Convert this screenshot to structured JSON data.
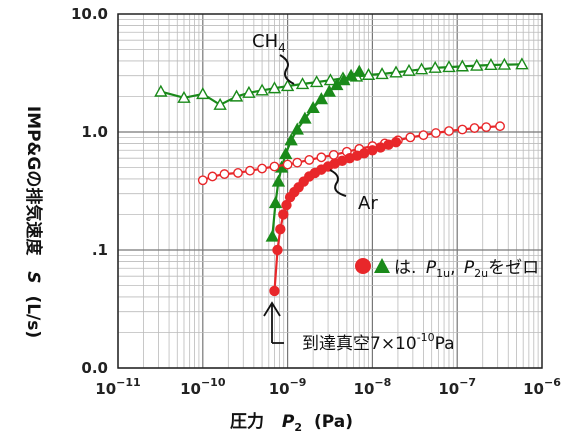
{
  "chart_data": {
    "type": "line",
    "x_scale": "log",
    "y_scale": "log",
    "xlim": [
      1e-11,
      1e-06
    ],
    "ylim": [
      0.01,
      10
    ],
    "grid": true,
    "xlabel_prefix": "圧力",
    "xlabel_var": "P",
    "xlabel_sub": "2",
    "xlabel_unit": "(Pa)",
    "ylabel": "IMP&Gの排気速度",
    "ylabel_var": "S",
    "ylabel_unit": "(L/s)",
    "y_ticks": [
      {
        "value": 10,
        "label": "10.0"
      },
      {
        "value": 1,
        "label": "1.0"
      },
      {
        "value": 0.1,
        "label": ".1"
      },
      {
        "value": 0.01,
        "label": "0.0"
      }
    ],
    "x_ticks": [
      {
        "value": 1e-11,
        "base": "10",
        "exp": "−11"
      },
      {
        "value": 1e-10,
        "base": "10",
        "exp": "−10"
      },
      {
        "value": 1e-09,
        "base": "10",
        "exp": "−9"
      },
      {
        "value": 1e-08,
        "base": "10",
        "exp": "−8"
      },
      {
        "value": 1e-07,
        "base": "10",
        "exp": "−7"
      },
      {
        "value": 1e-06,
        "base": "10",
        "exp": "−6"
      }
    ],
    "series": [
      {
        "name": "CH4 open",
        "color": "#1a8a1a",
        "marker": "triangle-open",
        "x": [
          3.2e-11,
          6e-11,
          1e-10,
          1.6e-10,
          2.5e-10,
          3.5e-10,
          5e-10,
          7e-10,
          1e-09,
          1.5e-09,
          2.2e-09,
          3.2e-09,
          4.5e-09,
          6.5e-09,
          9e-09,
          1.3e-08,
          1.9e-08,
          2.7e-08,
          3.8e-08,
          5.5e-08,
          8e-08,
          1.15e-07,
          1.7e-07,
          2.5e-07,
          3.6e-07,
          5.8e-07
        ],
        "y": [
          2.2,
          1.95,
          2.1,
          1.7,
          2.0,
          2.15,
          2.25,
          2.35,
          2.45,
          2.55,
          2.65,
          2.75,
          2.85,
          2.95,
          3.05,
          3.1,
          3.2,
          3.3,
          3.4,
          3.5,
          3.55,
          3.6,
          3.65,
          3.7,
          3.72,
          3.75
        ]
      },
      {
        "name": "CH4 filled",
        "color": "#1a8a1a",
        "marker": "triangle-filled",
        "x": [
          6.6e-10,
          7.2e-10,
          7.8e-10,
          8.5e-10,
          9.5e-10,
          1.1e-09,
          1.3e-09,
          1.6e-09,
          2e-09,
          2.5e-09,
          3.1e-09,
          3.8e-09,
          4.6e-09,
          5.6e-09,
          7e-09
        ],
        "y": [
          0.13,
          0.25,
          0.38,
          0.5,
          0.65,
          0.85,
          1.05,
          1.3,
          1.6,
          1.9,
          2.2,
          2.5,
          2.75,
          3.0,
          3.25
        ]
      },
      {
        "name": "Ar open",
        "color": "#e8272a",
        "marker": "circle-open",
        "x": [
          1e-10,
          1.3e-10,
          1.8e-10,
          2.6e-10,
          3.6e-10,
          5e-10,
          7e-10,
          1e-09,
          1.3e-09,
          1.8e-09,
          2.5e-09,
          3.5e-09,
          5e-09,
          7e-09,
          1e-08,
          1.4e-08,
          2e-08,
          2.8e-08,
          4e-08,
          5.6e-08,
          8e-08,
          1.15e-07,
          1.6e-07,
          2.2e-07,
          3.2e-07
        ],
        "y": [
          0.39,
          0.42,
          0.44,
          0.45,
          0.47,
          0.49,
          0.51,
          0.53,
          0.55,
          0.58,
          0.61,
          0.64,
          0.68,
          0.72,
          0.76,
          0.8,
          0.85,
          0.9,
          0.94,
          0.98,
          1.02,
          1.05,
          1.08,
          1.1,
          1.12
        ]
      },
      {
        "name": "Ar filled",
        "color": "#e8272a",
        "marker": "circle-filled",
        "x": [
          7e-10,
          7.6e-10,
          8.2e-10,
          8.9e-10,
          9.7e-10,
          1.07e-09,
          1.2e-09,
          1.35e-09,
          1.55e-09,
          1.8e-09,
          2.1e-09,
          2.5e-09,
          3e-09,
          3.6e-09,
          4.4e-09,
          5.4e-09,
          6.6e-09,
          8e-09,
          1e-08,
          1.25e-08,
          1.55e-08,
          1.9e-08
        ],
        "y": [
          0.045,
          0.1,
          0.15,
          0.2,
          0.24,
          0.28,
          0.31,
          0.34,
          0.38,
          0.42,
          0.45,
          0.48,
          0.51,
          0.54,
          0.57,
          0.6,
          0.63,
          0.66,
          0.7,
          0.74,
          0.78,
          0.82
        ]
      }
    ],
    "annotations": {
      "ch4_label": "CH",
      "ch4_sub": "4",
      "ar_label": "Ar",
      "note_text": "は.",
      "note_p": "P",
      "note_p1_sub": "1u",
      "note_sep": ",",
      "note_p2_sub": "2u",
      "note_tail": "をゼロ",
      "ultimate_label": "到達真空7×10",
      "ultimate_exp": "-10",
      "ultimate_unit": "Pa"
    }
  }
}
